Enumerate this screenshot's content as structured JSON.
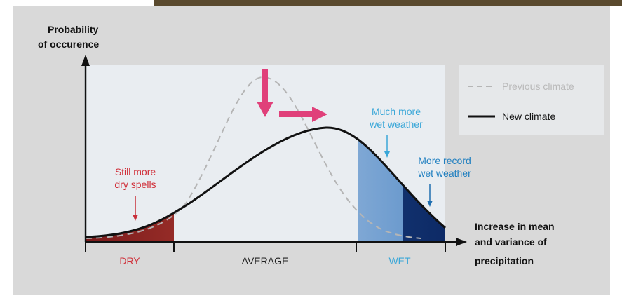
{
  "title": [
    "Probability",
    "of occurence"
  ],
  "legend": [
    "Previous climate",
    "New climate"
  ],
  "annotations": {
    "dry": [
      "Still more",
      "dry spells"
    ],
    "wet": [
      "Much more",
      "wet weather"
    ],
    "record": [
      "More record",
      "wet weather"
    ]
  },
  "zones": [
    "DRY",
    "AVERAGE",
    "WET"
  ],
  "x_axis_label": [
    "Increase in mean",
    "and variance of",
    "precipitation"
  ]
}
